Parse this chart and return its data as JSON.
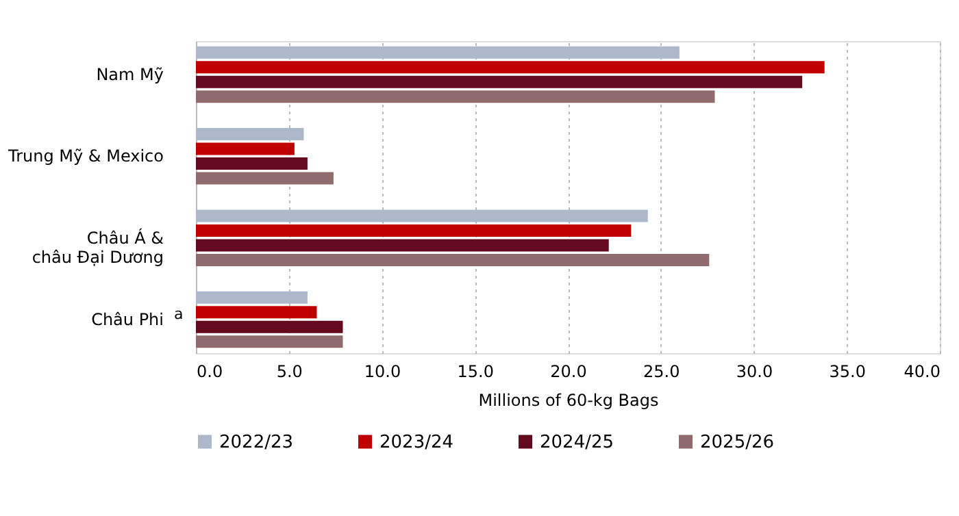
{
  "chart_data": {
    "type": "bar",
    "orientation": "horizontal",
    "xlabel": "Millions of 60-kg Bags",
    "categories": [
      "Nam Mỹ",
      "Trung Mỹ & Mexico",
      "Châu Á &\nchâu Đại Dương",
      "Châu Phi"
    ],
    "series": [
      {
        "name": "2022/23",
        "color": "#adb9ca",
        "values": [
          26.0,
          5.8,
          24.3,
          6.0
        ]
      },
      {
        "name": "2023/24",
        "color": "#c00000",
        "values": [
          33.8,
          5.3,
          23.4,
          6.5
        ]
      },
      {
        "name": "2024/25",
        "color": "#640a1e",
        "values": [
          32.6,
          6.0,
          22.2,
          7.9
        ]
      },
      {
        "name": "2025/26",
        "color": "#8f6b6d",
        "values": [
          27.9,
          7.4,
          27.6,
          7.9
        ]
      }
    ],
    "xlim": [
      0,
      40
    ],
    "xticks": [
      {
        "value": 0,
        "label": "0.0"
      },
      {
        "value": 5,
        "label": "5.0"
      },
      {
        "value": 10,
        "label": "10.0"
      },
      {
        "value": 15,
        "label": "15.0"
      },
      {
        "value": 20,
        "label": "20.0"
      },
      {
        "value": 25,
        "label": "25.0"
      },
      {
        "value": 30,
        "label": "30.0"
      },
      {
        "value": 35,
        "label": "35.0"
      },
      {
        "value": 40,
        "label": "40.0"
      }
    ],
    "grid": "x",
    "legend": "bottom",
    "annotations": [
      "a"
    ]
  }
}
